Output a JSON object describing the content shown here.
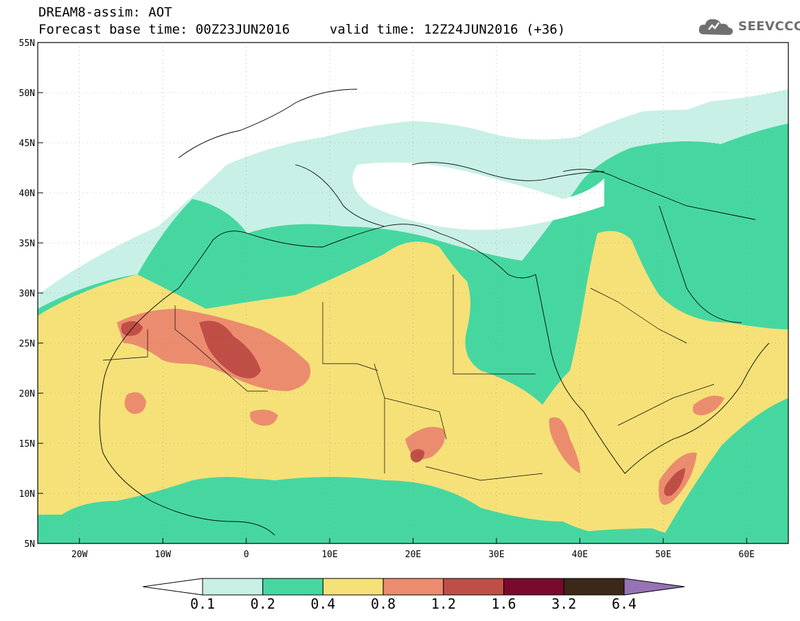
{
  "header": {
    "title": "DREAM8-assim: AOT",
    "base_time": "Forecast base time: 00Z23JUN2016",
    "valid_time": "valid time: 12Z24JUN2016 (+36)"
  },
  "logo": {
    "text": "SEEVCCC",
    "icon": "cloud-icon"
  },
  "map": {
    "lat_labels": [
      "55N",
      "50N",
      "45N",
      "40N",
      "35N",
      "30N",
      "25N",
      "20N",
      "15N",
      "10N",
      "5N"
    ],
    "lon_labels": [
      "20W",
      "10W",
      "0",
      "10E",
      "20E",
      "30E",
      "40E",
      "50E",
      "60E"
    ],
    "lat_values": [
      55,
      50,
      45,
      40,
      35,
      30,
      25,
      20,
      15,
      10,
      5
    ],
    "lon_values": [
      -20,
      -10,
      0,
      10,
      20,
      30,
      40,
      50,
      60
    ],
    "lon_range": [
      -25,
      65
    ],
    "lat_range": [
      5,
      55
    ]
  },
  "colorbar": {
    "labels": [
      "0.1",
      "0.2",
      "0.4",
      "0.8",
      "1.2",
      "1.6",
      "3.2",
      "6.4"
    ],
    "colors": [
      "#ffffff",
      "#c8f0e6",
      "#46d7a0",
      "#f5e178",
      "#eb8c6e",
      "#bf4f46",
      "#7a0a2b",
      "#3c2818",
      "#9673b4"
    ]
  },
  "aot_colors": {
    "c01": "#c8f0e6",
    "c02": "#46d7a0",
    "c04": "#f5e178",
    "c08": "#eb8c6e",
    "c12": "#bf4f46",
    "c16": "#7a0a2b",
    "c32": "#3c2818"
  }
}
